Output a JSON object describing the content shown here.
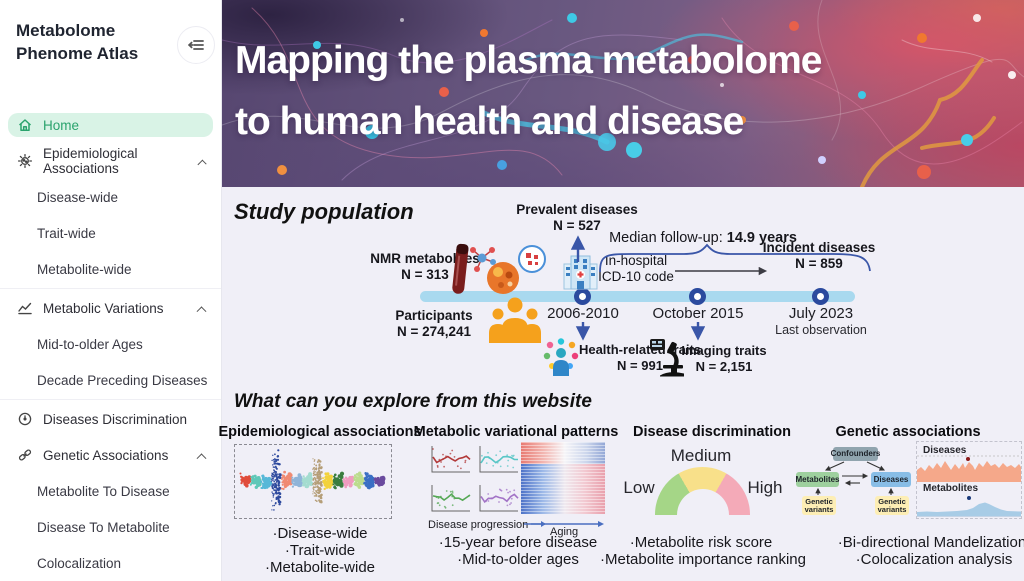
{
  "sidebar": {
    "brand_line1": "Metabolome",
    "brand_line2": "Phenome Atlas",
    "items": [
      {
        "label": "Home"
      },
      {
        "label": "Epidemiological Associations"
      },
      {
        "label": "Disease-wide"
      },
      {
        "label": "Trait-wide"
      },
      {
        "label": "Metabolite-wide"
      },
      {
        "label": "Metabolic Variations"
      },
      {
        "label": "Mid-to-older Ages"
      },
      {
        "label": "Decade Preceding Diseases"
      },
      {
        "label": "Diseases Discrimination"
      },
      {
        "label": "Genetic Associations"
      },
      {
        "label": "Metabolite To Disease"
      },
      {
        "label": "Disease To Metabolite"
      },
      {
        "label": "Colocalization"
      }
    ]
  },
  "hero": {
    "title_line1": "Mapping the plasma metabolome",
    "title_line2": "to human health and disease"
  },
  "study": {
    "heading": "Study population",
    "nmr": {
      "label": "NMR metabolites",
      "n": "N = 313"
    },
    "participants": {
      "label": "Participants",
      "n": "N = 274,241"
    },
    "prevalent": {
      "label": "Prevalent diseases",
      "n": "N = 527"
    },
    "hospital": {
      "line1": "In-hospital",
      "line2": "ICD-10 code"
    },
    "median_followup": {
      "prefix": "Median follow-up: ",
      "value": "14.9 years"
    },
    "incident": {
      "label": "Incident diseases",
      "n": "N = 859"
    },
    "health_traits": {
      "label": "Health-related traits",
      "n": "N = 991"
    },
    "imaging_traits": {
      "label": "Imaging traits",
      "n": "N = 2,151"
    },
    "timeline": [
      {
        "date": "2006-2010"
      },
      {
        "date": "October 2015"
      },
      {
        "date": "July 2023",
        "note": "Last observation"
      }
    ]
  },
  "explore": {
    "heading": "What can you explore from this website",
    "panels": [
      {
        "title": "Epidemiological associations",
        "bullets": [
          "·Disease-wide",
          "·Trait-wide",
          "·Metabolite-wide"
        ],
        "cluster_colors": [
          "#e04b3a",
          "#5fc8b8",
          "#57b8d8",
          "#2e4a9e",
          "#f08a72",
          "#8fb4d8",
          "#a4dcd0",
          "#b59e78",
          "#f2d23c",
          "#3a7d3f",
          "#ef9cc0",
          "#bcdc8e",
          "#3a6fc4",
          "#6a4a9e"
        ]
      },
      {
        "title": "Metabolic variational patterns",
        "axis1": "Disease progression",
        "axis2": "Aging",
        "plot_colors": [
          "#b23a3a",
          "#58c6c6",
          "#55a855",
          "#a273c6"
        ],
        "bullets": [
          "·15-year before disease",
          "·Mid-to-older ages"
        ]
      },
      {
        "title": "Disease discrimination",
        "gauge_labels": {
          "low": "Low",
          "medium": "Medium",
          "high": "High"
        },
        "bullets": [
          "·Metabolite risk score",
          "·Metabolite importance ranking"
        ]
      },
      {
        "title": "Genetic associations",
        "diagram": {
          "confounders": "Confounders",
          "metabolites": "Metabolites",
          "diseases": "Diseases",
          "genetic_variants_left": "Genetic variants",
          "genetic_variants_right": "Genetic variants"
        },
        "plots": {
          "top_label": "Diseases",
          "bottom_label": "Metabolites"
        },
        "bullets": [
          "·Bi-directional Mandelization",
          "·Colocalization analysis"
        ]
      }
    ]
  },
  "colors": {
    "accent_green": "#2aa36d",
    "active_bg": "#d9f3e6",
    "content_bg": "#f0eff7",
    "timeline_bar": "#a9d9ef",
    "timeline_dot": "#2b4a9e",
    "arrow_blue": "#3a56a8",
    "participants_orange": "#f5a11c",
    "gauge_green": "#a5d687",
    "gauge_yellow": "#f8e08a",
    "gauge_pink": "#f4aab8",
    "box_confounders": "#90a4ae",
    "box_metabolites": "#9ed09e",
    "box_diseases": "#88bde6",
    "box_variants": "#fdeeb5",
    "plot_diseases": "#f5a88a",
    "plot_metabolites": "#a8cce6"
  }
}
